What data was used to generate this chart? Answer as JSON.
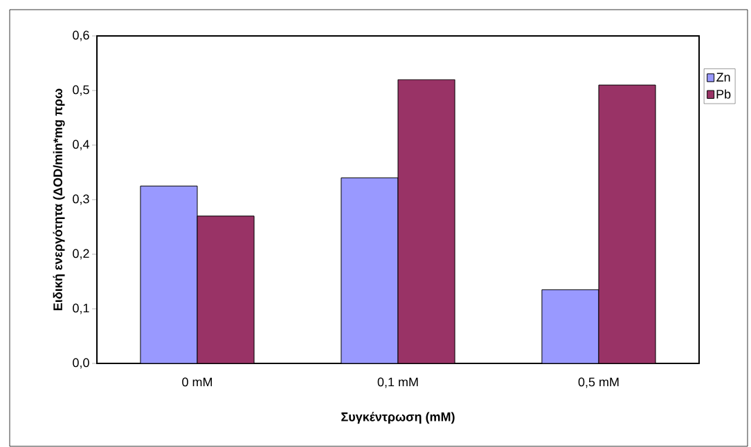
{
  "chart_data": {
    "type": "bar",
    "xlabel": "Συγκέντρωση (mM)",
    "ylabel": "Ειδική ενεργότητα (ΔOD/min*mg πρω",
    "categories": [
      "0 mM",
      "0,1 mM",
      "0,5 mM"
    ],
    "series": [
      {
        "name": "Zn",
        "color": "#9999ff",
        "values": [
          0.325,
          0.34,
          0.135
        ]
      },
      {
        "name": "Pb",
        "color": "#993366",
        "values": [
          0.27,
          0.52,
          0.51
        ]
      }
    ],
    "ylim": [
      0,
      0.6
    ],
    "yticks": [
      {
        "value": 0,
        "label": "0,0"
      },
      {
        "value": 0.1,
        "label": "0,1"
      },
      {
        "value": 0.2,
        "label": "0,2"
      },
      {
        "value": 0.3,
        "label": "0,3"
      },
      {
        "value": 0.4,
        "label": "0,4"
      },
      {
        "value": 0.5,
        "label": "0,5"
      },
      {
        "value": 0.6,
        "label": "0,6"
      }
    ],
    "grid": false,
    "legend": "top right"
  }
}
